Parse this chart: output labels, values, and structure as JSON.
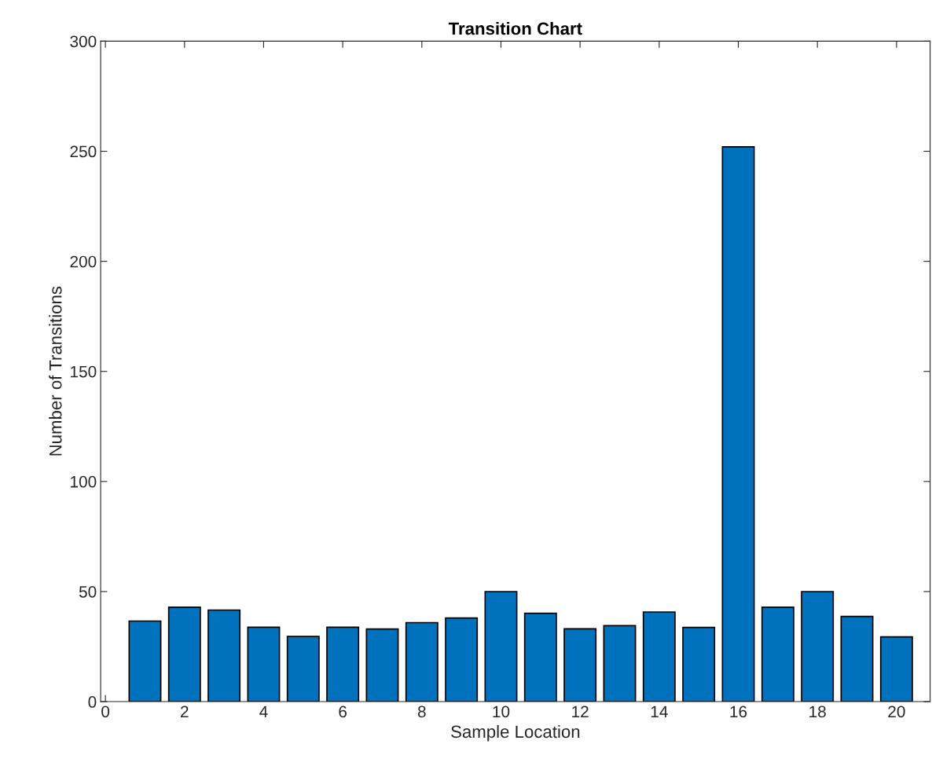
{
  "chart_data": {
    "type": "bar",
    "title": "Transition Chart",
    "xlabel": "Sample Location",
    "ylabel": "Number of Transitions",
    "x": [
      1,
      2,
      3,
      4,
      5,
      6,
      7,
      8,
      9,
      10,
      11,
      12,
      13,
      14,
      15,
      16,
      17,
      18,
      19,
      20
    ],
    "values": [
      36.6,
      42.9,
      41.6,
      33.8,
      29.6,
      33.8,
      33.0,
      35.9,
      38.0,
      50,
      40.1,
      33.1,
      34.5,
      40.7,
      33.7,
      252,
      42.9,
      50,
      38.7,
      29.4
    ],
    "color": "#0072bd",
    "xlim": [
      -0.12,
      20.85
    ],
    "xticks": [
      0,
      2,
      4,
      6,
      8,
      10,
      12,
      14,
      16,
      18,
      20
    ],
    "ylim": [
      0,
      300
    ],
    "yticks": [
      0,
      50,
      100,
      150,
      200,
      250,
      300
    ],
    "grid": false
  }
}
